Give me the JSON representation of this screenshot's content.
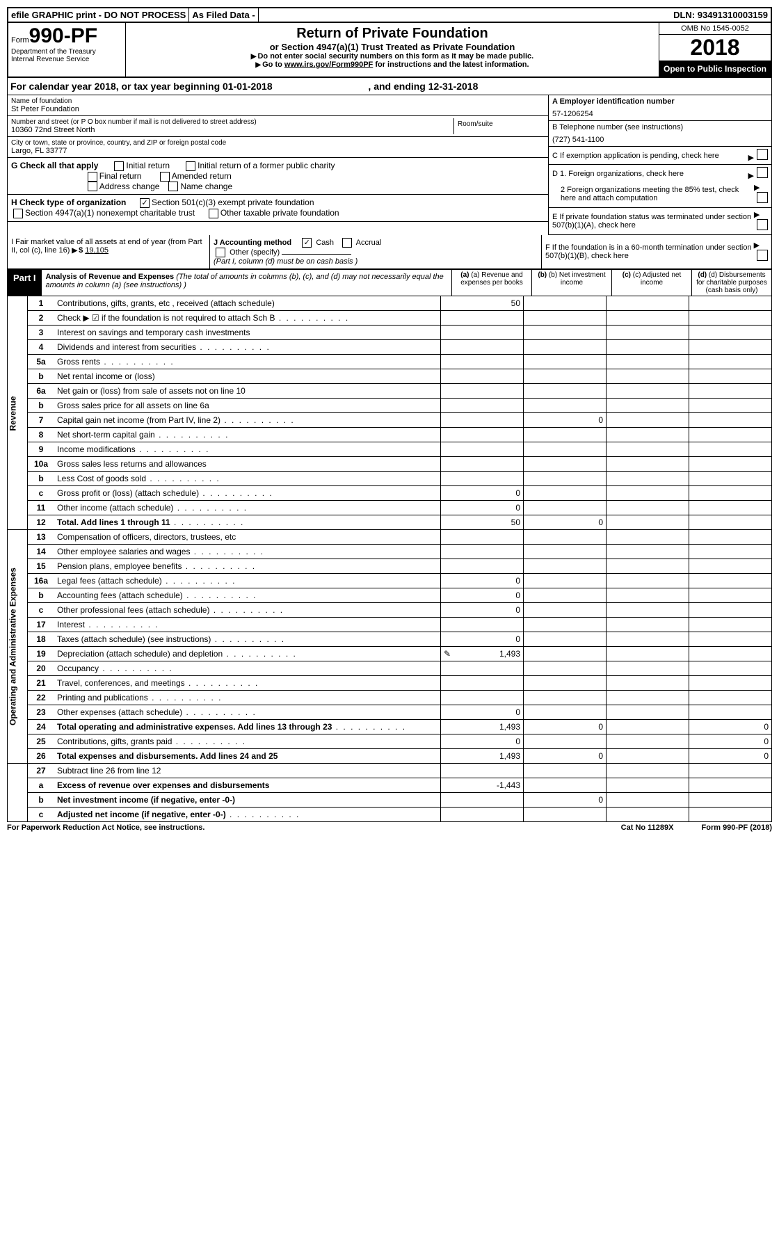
{
  "topbar": {
    "efile": "efile GRAPHIC print - DO NOT PROCESS",
    "asfiled": "As Filed Data -",
    "dln_label": "DLN:",
    "dln": "93491310003159"
  },
  "header": {
    "form_prefix": "Form",
    "form_number": "990-PF",
    "dept1": "Department of the Treasury",
    "dept2": "Internal Revenue Service",
    "title": "Return of Private Foundation",
    "subtitle": "or Section 4947(a)(1) Trust Treated as Private Foundation",
    "instr1": "Do not enter social security numbers on this form as it may be made public.",
    "instr2_pre": "Go to ",
    "instr2_link": "www.irs.gov/Form990PF",
    "instr2_post": " for instructions and the latest information.",
    "omb": "OMB No 1545-0052",
    "year": "2018",
    "open": "Open to Public Inspection"
  },
  "calyear": {
    "pre": "For calendar year 2018, or tax year beginning ",
    "begin": "01-01-2018",
    "mid": " , and ending ",
    "end": "12-31-2018"
  },
  "foundation": {
    "name_label": "Name of foundation",
    "name": "St Peter Foundation",
    "addr_label": "Number and street (or P O  box number if mail is not delivered to street address)",
    "addr": "10360 72nd Street North",
    "room_label": "Room/suite",
    "city_label": "City or town, state or province, country, and ZIP or foreign postal code",
    "city": "Largo, FL  33777"
  },
  "right_boxes": {
    "a_label": "A Employer identification number",
    "a_val": "57-1206254",
    "b_label": "B Telephone number (see instructions)",
    "b_val": "(727) 541-1100",
    "c_label": "C If exemption application is pending, check here",
    "d1": "D 1. Foreign organizations, check here",
    "d2": "2 Foreign organizations meeting the 85% test, check here and attach computation",
    "e": "E  If private foundation status was terminated under section 507(b)(1)(A), check here",
    "f": "F  If the foundation is in a 60-month termination under section 507(b)(1)(B), check here"
  },
  "g": {
    "label": "G Check all that apply",
    "opts": [
      "Initial return",
      "Initial return of a former public charity",
      "Final return",
      "Amended return",
      "Address change",
      "Name change"
    ]
  },
  "h": {
    "label": "H Check type of organization",
    "opt1": "Section 501(c)(3) exempt private foundation",
    "opt2": "Section 4947(a)(1) nonexempt charitable trust",
    "opt3": "Other taxable private foundation"
  },
  "i": {
    "label": "I Fair market value of all assets at end of year (from Part II, col (c), line 16)",
    "val": "19,105"
  },
  "j": {
    "label": "J Accounting method",
    "cash": "Cash",
    "accrual": "Accrual",
    "other": "Other (specify)",
    "note": "(Part I, column (d) must be on cash basis )"
  },
  "part1": {
    "label": "Part I",
    "title": "Analysis of Revenue and Expenses",
    "title_note": " (The total of amounts in columns (b), (c), and (d) may not necessarily equal the amounts in column (a) (see instructions) )",
    "col_a": "(a) Revenue and expenses per books",
    "col_b": "(b) Net investment income",
    "col_c": "(c) Adjusted net income",
    "col_d": "(d) Disbursements for charitable purposes (cash basis only)"
  },
  "revenue_label": "Revenue",
  "expenses_label": "Operating and Administrative Expenses",
  "rows": [
    {
      "n": "1",
      "d": "Contributions, gifts, grants, etc , received (attach schedule)",
      "a": "50"
    },
    {
      "n": "2",
      "d": "Check ▶ ☑ if the foundation is not required to attach Sch  B",
      "dots": true
    },
    {
      "n": "3",
      "d": "Interest on savings and temporary cash investments"
    },
    {
      "n": "4",
      "d": "Dividends and interest from securities",
      "dots": true
    },
    {
      "n": "5a",
      "d": "Gross rents",
      "dots": true
    },
    {
      "n": "b",
      "d": "Net rental income or (loss)"
    },
    {
      "n": "6a",
      "d": "Net gain or (loss) from sale of assets not on line 10"
    },
    {
      "n": "b",
      "d": "Gross sales price for all assets on line 6a"
    },
    {
      "n": "7",
      "d": "Capital gain net income (from Part IV, line 2)",
      "dots": true,
      "b": "0"
    },
    {
      "n": "8",
      "d": "Net short-term capital gain",
      "dots": true
    },
    {
      "n": "9",
      "d": "Income modifications",
      "dots": true
    },
    {
      "n": "10a",
      "d": "Gross sales less returns and allowances"
    },
    {
      "n": "b",
      "d": "Less  Cost of goods sold",
      "dots": true
    },
    {
      "n": "c",
      "d": "Gross profit or (loss) (attach schedule)",
      "dots": true,
      "a": "0"
    },
    {
      "n": "11",
      "d": "Other income (attach schedule)",
      "dots": true,
      "a": "0"
    },
    {
      "n": "12",
      "d": "Total. Add lines 1 through 11",
      "dots": true,
      "bold": true,
      "a": "50",
      "b": "0"
    }
  ],
  "exp_rows": [
    {
      "n": "13",
      "d": "Compensation of officers, directors, trustees, etc"
    },
    {
      "n": "14",
      "d": "Other employee salaries and wages",
      "dots": true
    },
    {
      "n": "15",
      "d": "Pension plans, employee benefits",
      "dots": true
    },
    {
      "n": "16a",
      "d": "Legal fees (attach schedule)",
      "dots": true,
      "a": "0"
    },
    {
      "n": "b",
      "d": "Accounting fees (attach schedule)",
      "dots": true,
      "a": "0"
    },
    {
      "n": "c",
      "d": "Other professional fees (attach schedule)",
      "dots": true,
      "a": "0"
    },
    {
      "n": "17",
      "d": "Interest",
      "dots": true
    },
    {
      "n": "18",
      "d": "Taxes (attach schedule) (see instructions)",
      "dots": true,
      "a": "0"
    },
    {
      "n": "19",
      "d": "Depreciation (attach schedule) and depletion",
      "dots": true,
      "a": "1,493",
      "icon": true
    },
    {
      "n": "20",
      "d": "Occupancy",
      "dots": true
    },
    {
      "n": "21",
      "d": "Travel, conferences, and meetings",
      "dots": true
    },
    {
      "n": "22",
      "d": "Printing and publications",
      "dots": true
    },
    {
      "n": "23",
      "d": "Other expenses (attach schedule)",
      "dots": true,
      "a": "0"
    },
    {
      "n": "24",
      "d": "Total operating and administrative expenses. Add lines 13 through 23",
      "dots": true,
      "bold": true,
      "a": "1,493",
      "b": "0",
      "d_val": "0"
    },
    {
      "n": "25",
      "d": "Contributions, gifts, grants paid",
      "dots": true,
      "a": "0",
      "d_val": "0"
    },
    {
      "n": "26",
      "d": "Total expenses and disbursements. Add lines 24 and 25",
      "bold": true,
      "a": "1,493",
      "b": "0",
      "d_val": "0"
    }
  ],
  "sum_rows": [
    {
      "n": "27",
      "d": "Subtract line 26 from line 12"
    },
    {
      "n": "a",
      "d": "Excess of revenue over expenses and disbursements",
      "bold": true,
      "a": "-1,443"
    },
    {
      "n": "b",
      "d": "Net investment income (if negative, enter -0-)",
      "bold": true,
      "b": "0"
    },
    {
      "n": "c",
      "d": "Adjusted net income (if negative, enter -0-)",
      "bold": true,
      "dots": true
    }
  ],
  "footer": {
    "left": "For Paperwork Reduction Act Notice, see instructions.",
    "mid": "Cat  No  11289X",
    "right": "Form 990-PF (2018)"
  }
}
